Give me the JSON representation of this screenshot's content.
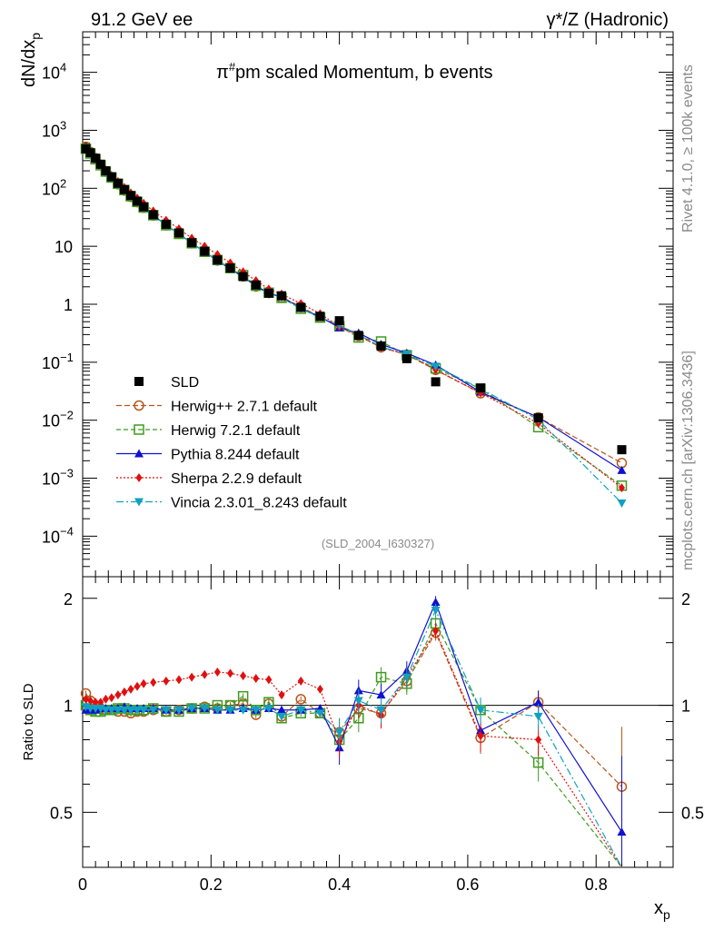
{
  "header": {
    "left": "91.2 GeV ee",
    "right_base": "γ*/Z (Hadronic)",
    "rivet": "Rivet 4.1.0, ≥ 100k events",
    "mcplots": "mcplots.cern.ch [arXiv:1306.3436]"
  },
  "chart_data": {
    "type": "line",
    "title": "π#pm scaled Momentum, b events",
    "title_main": "π",
    "title_sup": "#",
    "title_rest": "pm scaled Momentum, b events",
    "analysis_id": "(SLD_2004_I630327)",
    "ylabel": "dN/dx",
    "ylabel_sub": "p",
    "xlabel": "x",
    "xlabel_sub": "p",
    "ratio_ylabel": "Ratio to SLD",
    "xlim": [
      0,
      0.92
    ],
    "ylim_log": [
      2e-05,
      50000.0
    ],
    "ratio_ylim": [
      0.35,
      2.3
    ],
    "x_ticks": [
      "0",
      "0.2",
      "0.4",
      "0.6",
      "0.8"
    ],
    "x_tick_values": [
      0,
      0.2,
      0.4,
      0.6,
      0.8
    ],
    "y_ticks": [
      {
        "value": 10000,
        "base": "10",
        "exp": "4"
      },
      {
        "value": 1000,
        "base": "10",
        "exp": "3"
      },
      {
        "value": 100,
        "base": "10",
        "exp": "2"
      },
      {
        "value": 10,
        "base": "10",
        "exp": ""
      },
      {
        "value": 1,
        "base": "1",
        "exp": ""
      },
      {
        "value": 0.1,
        "base": "10",
        "exp": "−1"
      },
      {
        "value": 0.01,
        "base": "10",
        "exp": "−2"
      },
      {
        "value": 0.001,
        "base": "10",
        "exp": "−3"
      },
      {
        "value": 0.0001,
        "base": "10",
        "exp": "−4"
      }
    ],
    "ratio_ticks": [
      "0.5",
      "1",
      "2"
    ],
    "ratio_tick_values": [
      0.5,
      1,
      2
    ],
    "x": [
      0.005,
      0.012,
      0.02,
      0.028,
      0.036,
      0.045,
      0.055,
      0.065,
      0.075,
      0.085,
      0.095,
      0.11,
      0.13,
      0.15,
      0.17,
      0.19,
      0.21,
      0.23,
      0.25,
      0.27,
      0.29,
      0.31,
      0.34,
      0.37,
      0.4,
      0.43,
      0.465,
      0.505,
      0.55,
      0.62,
      0.71,
      0.84
    ],
    "data": {
      "name": "SLD",
      "color": "#000000",
      "values": [
        480,
        410,
        330,
        260,
        200,
        158,
        122,
        95,
        75,
        60,
        48,
        35,
        24,
        17,
        11.5,
        8.2,
        5.8,
        4.2,
        3.0,
        2.15,
        1.55,
        1.4,
        0.88,
        0.62,
        0.52,
        0.29,
        0.19,
        0.115,
        0.046,
        0.036,
        0.011,
        0.0031
      ]
    },
    "series": [
      {
        "name": "Herwig++ 2.7.1 default",
        "color": "#b8561a",
        "marker": "circle-open",
        "dash": "6,3",
        "ratio": [
          1.08,
          1.03,
          1.0,
          0.98,
          0.97,
          0.97,
          0.96,
          0.96,
          0.95,
          0.96,
          0.96,
          0.97,
          0.96,
          0.97,
          0.98,
          0.99,
          0.98,
          1.0,
          1.01,
          0.94,
          1.01,
          0.93,
          1.04,
          0.95,
          0.84,
          0.98,
          0.95,
          1.17,
          1.6,
          0.81,
          1.02,
          0.59
        ]
      },
      {
        "name": "Herwig 7.2.1 default",
        "color": "#3f9b1f",
        "marker": "square-open",
        "dash": "5,3",
        "ratio": [
          1.0,
          0.97,
          0.96,
          0.96,
          0.97,
          0.97,
          0.98,
          0.98,
          0.97,
          0.97,
          0.97,
          0.98,
          0.96,
          0.96,
          0.98,
          0.98,
          1.0,
          1.0,
          1.06,
          0.97,
          1.02,
          0.92,
          0.95,
          0.95,
          0.8,
          0.92,
          1.2,
          1.15,
          1.7,
          0.97,
          0.69,
          0.24
        ]
      },
      {
        "name": "Pythia 8.244 default",
        "color": "#1010d0",
        "marker": "triangle-up",
        "dash": "",
        "ratio": [
          0.97,
          0.97,
          0.97,
          0.98,
          0.98,
          0.98,
          0.98,
          0.99,
          0.98,
          0.98,
          0.98,
          0.98,
          0.97,
          0.97,
          0.98,
          0.98,
          0.97,
          0.97,
          0.98,
          0.97,
          0.98,
          0.97,
          0.97,
          0.98,
          0.76,
          1.1,
          1.07,
          1.25,
          1.95,
          0.85,
          1.02,
          0.44
        ]
      },
      {
        "name": "Sherpa 2.2.9 default",
        "color": "#e01010",
        "marker": "diamond",
        "dash": "2,2",
        "ratio": [
          1.04,
          1.03,
          1.02,
          1.02,
          1.04,
          1.05,
          1.07,
          1.09,
          1.11,
          1.13,
          1.15,
          1.16,
          1.17,
          1.18,
          1.2,
          1.22,
          1.24,
          1.23,
          1.21,
          1.19,
          1.18,
          1.07,
          1.17,
          1.11,
          0.79,
          1.0,
          0.94,
          1.2,
          1.62,
          0.82,
          0.8,
          0.22
        ]
      },
      {
        "name": "Vincia 2.3.01_8.243 default",
        "color": "#10a0c0",
        "marker": "triangle-down",
        "dash": "8,3,2,3",
        "ratio": [
          0.99,
          0.98,
          0.98,
          0.98,
          0.97,
          0.97,
          0.97,
          0.97,
          0.97,
          0.97,
          0.97,
          0.97,
          0.97,
          0.97,
          0.98,
          0.98,
          0.97,
          0.97,
          0.97,
          0.97,
          0.98,
          0.93,
          0.97,
          0.95,
          0.84,
          1.03,
          0.97,
          1.2,
          1.85,
          0.97,
          0.93,
          0.12
        ]
      }
    ]
  }
}
